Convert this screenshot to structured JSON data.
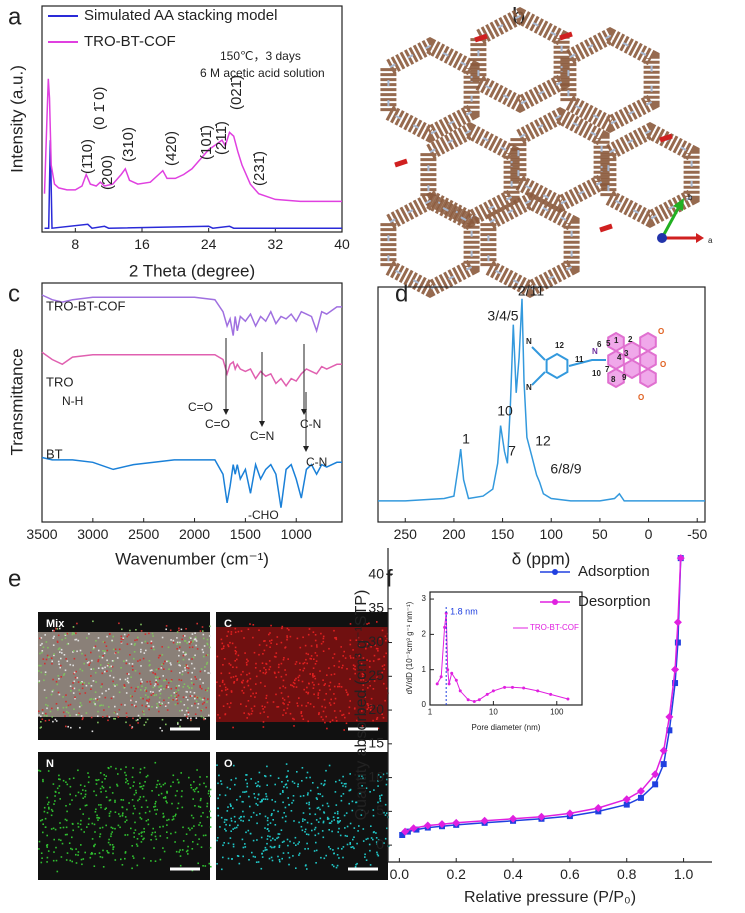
{
  "panels": [
    "a",
    "b",
    "c",
    "d",
    "e",
    "f"
  ],
  "chart_data": [
    {
      "type": "line",
      "xlabel": "2 Theta (degree)",
      "ylabel": "Intensity (a.u.)",
      "xlim": [
        4,
        40
      ],
      "xticks": [
        8,
        16,
        24,
        32,
        40
      ],
      "ylim": [
        0,
        118
      ],
      "grid": false,
      "series": [
        {
          "name": "Simulated AA stacking model",
          "color": "#2a2ad8",
          "x": [
            4.3,
            4.8,
            5.0,
            5.2,
            9.5,
            10,
            11.5,
            12,
            24,
            24.5,
            26.5,
            27,
            40
          ],
          "values": [
            2,
            2,
            48,
            2,
            4,
            2,
            3,
            2,
            3,
            2,
            3,
            2,
            2
          ]
        },
        {
          "name": "TRO-BT-COF",
          "color": "#e040e0",
          "x": [
            4.3,
            4.6,
            4.75,
            4.9,
            5.1,
            5.5,
            6,
            7,
            8,
            8.8,
            9.3,
            9.8,
            10.5,
            11,
            11.5,
            12.5,
            13.5,
            14,
            14.5,
            15.5,
            17,
            18,
            18.5,
            19,
            20,
            21,
            22,
            23,
            24,
            25,
            25.6,
            26,
            26.5,
            27,
            27.5,
            28,
            29,
            30,
            32,
            35,
            40
          ],
          "values": [
            20,
            60,
            80,
            70,
            35,
            25,
            23,
            22,
            22,
            24,
            30,
            25,
            24,
            26,
            24,
            25,
            30,
            33,
            27,
            25,
            26,
            30,
            32,
            28,
            28,
            30,
            33,
            38,
            43,
            46,
            48,
            45,
            52,
            50,
            42,
            35,
            25,
            20,
            17,
            16,
            16
          ]
        }
      ],
      "annotations": [
        "150℃，3 days",
        "6 M acetic acid solution"
      ],
      "peak_labels": [
        "(0 1̄ 0)",
        "(1̄10)",
        "(200)",
        "(310)",
        "(420)",
        "(101̄)",
        "(211̄)",
        "(021̄)",
        "(231̄)"
      ]
    },
    {
      "type": "line",
      "xlabel": "Wavenumber (cm⁻¹)",
      "ylabel": "Transmittance",
      "xlim": [
        3500,
        550
      ],
      "xticks": [
        3500,
        3000,
        2500,
        2000,
        1500,
        1000
      ],
      "ylim": [
        0,
        100
      ],
      "grid": false,
      "series": [
        {
          "name": "TRO-BT-COF",
          "color": "#a070e0",
          "x": [
            3500,
            3400,
            3300,
            3200,
            3000,
            2800,
            2600,
            2400,
            2200,
            2000,
            1800,
            1720,
            1680,
            1650,
            1620,
            1600,
            1580,
            1550,
            1500,
            1450,
            1400,
            1350,
            1300,
            1250,
            1200,
            1150,
            1100,
            1050,
            1000,
            950,
            900,
            850,
            800,
            750,
            700,
            600,
            550
          ],
          "values": [
            95,
            93,
            92,
            93,
            94,
            94,
            94,
            94,
            94,
            94,
            93,
            88,
            82,
            85,
            78,
            86,
            80,
            86,
            84,
            87,
            82,
            86,
            84,
            88,
            83,
            86,
            85,
            87,
            84,
            88,
            87,
            86,
            80,
            88,
            87,
            90,
            90
          ]
        },
        {
          "name": "TRO",
          "color": "#e060b0",
          "x": [
            3500,
            3400,
            3300,
            3200,
            3000,
            2800,
            2600,
            2400,
            2200,
            2000,
            1800,
            1720,
            1680,
            1650,
            1620,
            1600,
            1580,
            1550,
            1500,
            1450,
            1400,
            1350,
            1300,
            1250,
            1200,
            1150,
            1100,
            1050,
            1000,
            950,
            900,
            850,
            800,
            750,
            700,
            600,
            550
          ],
          "values": [
            71,
            68,
            66,
            69,
            70,
            70,
            70,
            70,
            70,
            70,
            70,
            68,
            62,
            66,
            67,
            64,
            66,
            64,
            63,
            64,
            60,
            63,
            61,
            62,
            58,
            60,
            57,
            60,
            59,
            62,
            64,
            63,
            62,
            65,
            64,
            66,
            66
          ]
        },
        {
          "name": "BT",
          "color": "#1a80d8",
          "x": [
            3500,
            3400,
            3300,
            3200,
            3000,
            2800,
            2600,
            2400,
            2200,
            2000,
            1800,
            1720,
            1680,
            1650,
            1620,
            1600,
            1580,
            1550,
            1500,
            1450,
            1400,
            1350,
            1300,
            1250,
            1200,
            1150,
            1100,
            1050,
            1000,
            950,
            900,
            850,
            800,
            750,
            700,
            600,
            550
          ],
          "values": [
            27,
            26,
            26,
            26,
            25,
            22,
            24,
            25,
            26,
            26,
            26,
            20,
            8,
            15,
            24,
            20,
            24,
            18,
            22,
            12,
            24,
            18,
            22,
            24,
            20,
            6,
            22,
            24,
            18,
            10,
            22,
            24,
            20,
            24,
            23,
            25,
            25
          ]
        }
      ],
      "annotations": [
        "C=O",
        "C=N",
        "C-N",
        "N-H",
        "C=O",
        "C-N",
        "-CHO"
      ]
    },
    {
      "type": "line",
      "xlabel": "δ (ppm)",
      "xlim": [
        278,
        -58
      ],
      "xticks": [
        250,
        200,
        150,
        100,
        50,
        0,
        -50
      ],
      "ylim": [
        0,
        100
      ],
      "grid": false,
      "series": [
        {
          "name": "TRO-BT-COF",
          "color": "#3399dd",
          "x": [
            278,
            250,
            210,
            200,
            195,
            193,
            190,
            185,
            170,
            160,
            155,
            152,
            148,
            145,
            142,
            139,
            136,
            133,
            130,
            128,
            125,
            120,
            115,
            112,
            108,
            100,
            80,
            50,
            35,
            30,
            25,
            0,
            -30,
            -58
          ],
          "values": [
            9,
            9,
            10,
            11,
            25,
            31,
            18,
            10,
            11,
            14,
            25,
            41,
            30,
            25,
            50,
            84,
            55,
            70,
            95,
            60,
            36,
            28,
            20,
            17,
            12,
            10,
            9,
            9,
            10,
            12,
            9,
            9,
            9,
            9
          ]
        }
      ],
      "peak_labels": [
        "2/11",
        "3/4/5",
        "10",
        "1",
        "7",
        "12",
        "6/8/9"
      ],
      "structure_labels": [
        "N",
        "N",
        "12",
        "11",
        "N",
        "10",
        "6",
        "5",
        "1",
        "2",
        "4",
        "3",
        "7",
        "8",
        "9",
        "O",
        "O",
        "O"
      ]
    },
    {
      "type": "line",
      "xlabel": "Relative pressure (P/P₀)",
      "ylabel": "Quantity absorbed (cm³ g⁻¹STP)",
      "xlim": [
        -0.04,
        1.1
      ],
      "xticks": [
        {
          "value": 0,
          "label": "0.0"
        },
        0.2,
        0.4,
        0.6,
        0.8,
        {
          "value": 1,
          "label": "1.0"
        }
      ],
      "ylim": [
        -2.5,
        44
      ],
      "yticks": [
        0,
        5,
        10,
        15,
        20,
        25,
        30,
        35,
        40
      ],
      "grid": false,
      "series": [
        {
          "name": "Adsorption",
          "color": "#2040e0",
          "marker": "square",
          "x": [
            0.01,
            0.03,
            0.06,
            0.1,
            0.15,
            0.2,
            0.3,
            0.4,
            0.5,
            0.6,
            0.7,
            0.8,
            0.85,
            0.9,
            0.93,
            0.95,
            0.97,
            0.98,
            0.99
          ],
          "values": [
            1.5,
            2,
            2.3,
            2.6,
            2.8,
            3,
            3.3,
            3.6,
            3.9,
            4.3,
            5,
            6,
            7,
            9,
            12,
            17,
            24,
            30,
            42.5
          ]
        },
        {
          "name": "Desorption",
          "color": "#e020e0",
          "marker": "diamond",
          "x": [
            0.99,
            0.98,
            0.97,
            0.95,
            0.93,
            0.9,
            0.85,
            0.8,
            0.7,
            0.6,
            0.5,
            0.4,
            0.3,
            0.2,
            0.15,
            0.1,
            0.05,
            0.02
          ],
          "values": [
            42.5,
            33,
            26,
            19,
            14,
            10.5,
            8,
            6.8,
            5.5,
            4.7,
            4.2,
            3.9,
            3.6,
            3.3,
            3.1,
            2.9,
            2.5,
            2
          ]
        }
      ]
    },
    {
      "type": "line",
      "xlabel": "Pore diameter (nm)",
      "ylabel": "dV/dD (10⁻³cm³ g⁻¹ nm⁻¹)",
      "xscale": "log",
      "xlim": [
        1,
        250
      ],
      "xticks": [
        1,
        10,
        100
      ],
      "ylim": [
        0,
        3.2
      ],
      "yticks": [
        0,
        1,
        2,
        3
      ],
      "grid": false,
      "series": [
        {
          "name": "TRO-BT-COF",
          "color": "#e020e0",
          "marker": "dot",
          "x": [
            1.3,
            1.5,
            1.7,
            1.8,
            1.9,
            2,
            2.2,
            2.6,
            3,
            4,
            5,
            6,
            8,
            10,
            15,
            20,
            30,
            50,
            80,
            150
          ],
          "values": [
            0.6,
            0.8,
            2.2,
            2.6,
            1.0,
            0.6,
            0.9,
            0.7,
            0.4,
            0.15,
            0.1,
            0.15,
            0.3,
            0.4,
            0.5,
            0.5,
            0.48,
            0.4,
            0.3,
            0.17
          ]
        }
      ],
      "annotation": {
        "text": "1.8 nm",
        "x": 1.8
      }
    }
  ],
  "panel_b": {
    "axis_labels": [
      "b",
      "a"
    ]
  },
  "panel_e": {
    "tiles": [
      "Mix",
      "C",
      "N",
      "O"
    ]
  }
}
